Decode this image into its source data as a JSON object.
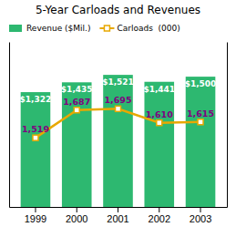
{
  "chart_data": {
    "type": "bar",
    "title": "5-Year Carloads and Revenues",
    "categories": [
      "1999",
      "2000",
      "2001",
      "2002",
      "2003"
    ],
    "series": [
      {
        "name": "Revenue ($Mil.)",
        "type": "bar",
        "color": "#2db870",
        "values": [
          1322,
          1435,
          1521,
          1441,
          1500
        ],
        "value_labels": [
          "$1,322",
          "$1,435",
          "$1,521",
          "$1,441",
          "$1,500"
        ]
      },
      {
        "name": "Carloads  (000)",
        "type": "line",
        "axis": "y2",
        "color": "#e8a800",
        "marker": "square",
        "values": [
          1519,
          1687,
          1695,
          1610,
          1615
        ],
        "value_labels": [
          "1,519",
          "1,687",
          "1,695",
          "1,610",
          "1,615"
        ]
      }
    ],
    "ylim": [
      0,
      1900
    ],
    "y2lim": [
      1100,
      2100
    ],
    "data_labels": true,
    "tick_labels": "x",
    "legend": "upper left",
    "grid": false
  }
}
